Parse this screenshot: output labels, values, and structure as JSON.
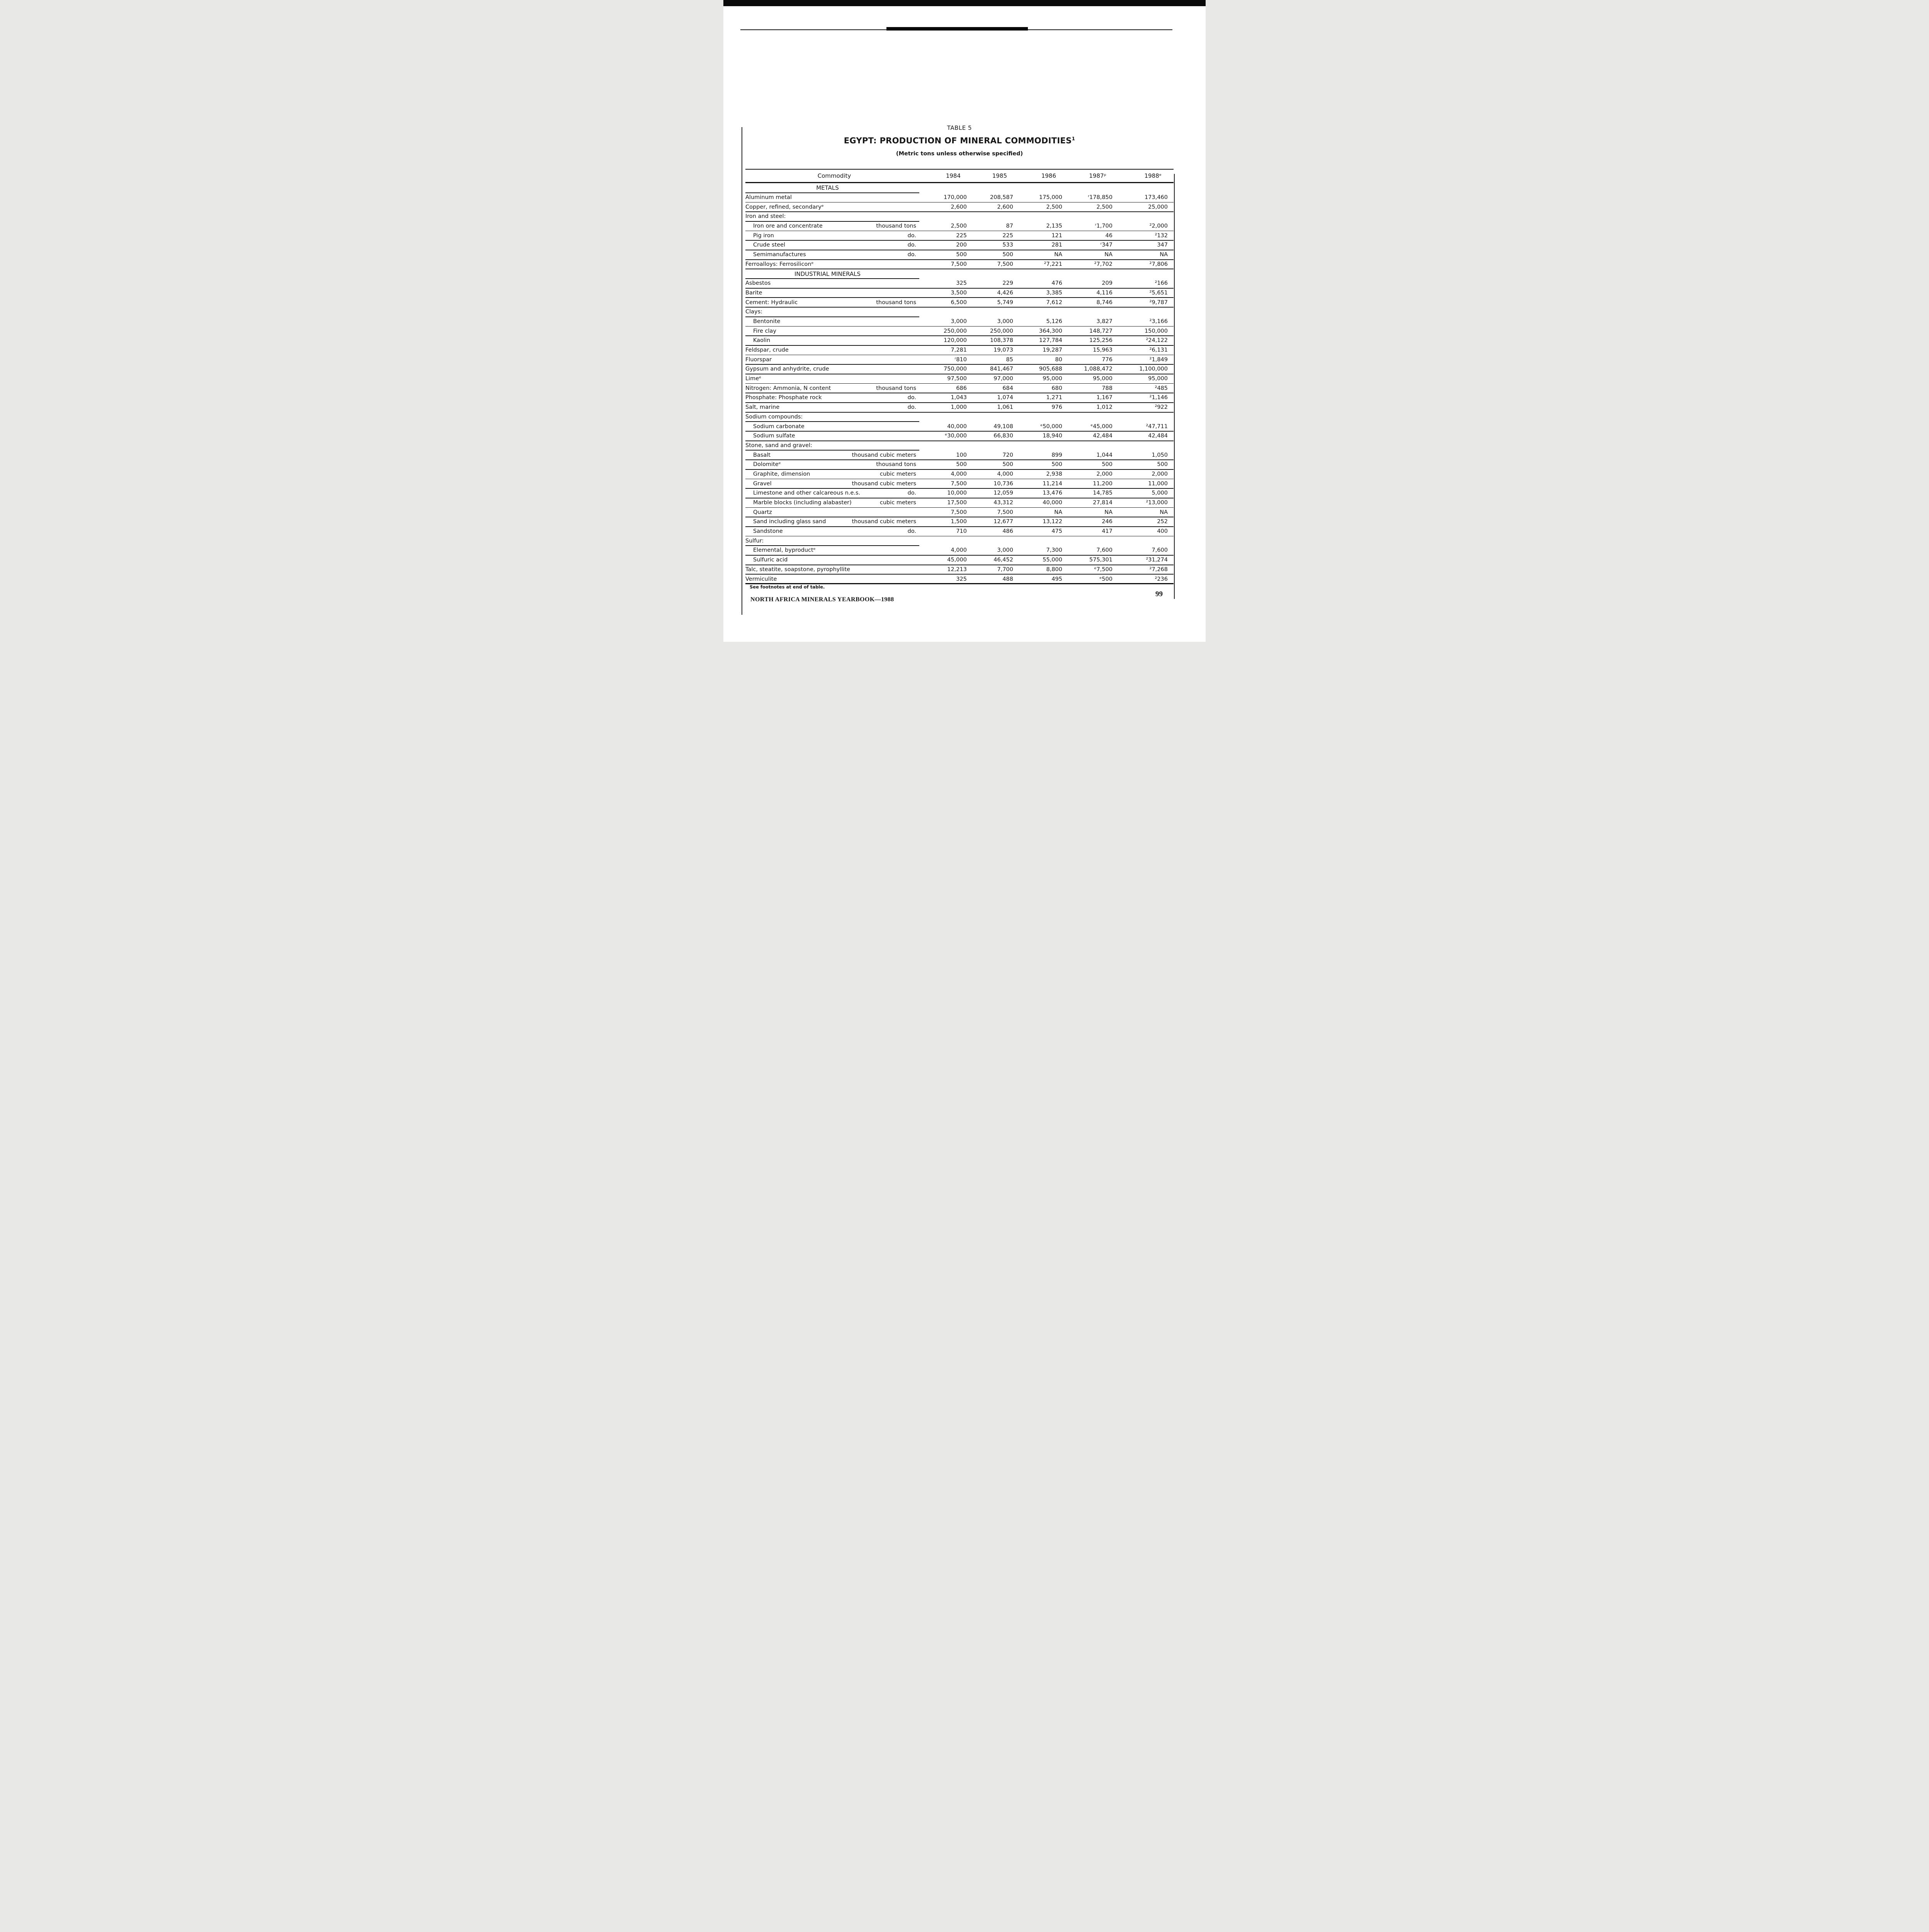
{
  "ink_color": "#161616",
  "page": {
    "table_label": "TABLE 5",
    "title": "EGYPT: PRODUCTION OF MINERAL COMMODITIES",
    "title_footnote_marker": "1",
    "subtitle": "(Metric tons unless otherwise specified)",
    "footnote": "See footnotes at end of table.",
    "footer": "NORTH AFRICA MINERALS YEARBOOK—1988",
    "page_number": "99"
  },
  "table": {
    "commodity_header": "Commodity",
    "columns": [
      "1984",
      "1985",
      "1986",
      "1987ᵖ",
      "1988ᵉ"
    ],
    "rows": [
      {
        "type": "section",
        "label": "METALS"
      },
      {
        "type": "data",
        "label": "Aluminum metal",
        "indent": 0,
        "unit": "",
        "values": [
          "170,000",
          "208,587",
          "175,000",
          "ʳ178,850",
          "173,460"
        ]
      },
      {
        "type": "data",
        "label": "Copper, refined, secondaryᵉ",
        "indent": 0,
        "unit": "",
        "values": [
          "2,600",
          "2,600",
          "2,500",
          "2,500",
          "25,000"
        ]
      },
      {
        "type": "group",
        "label": "Iron and steel:"
      },
      {
        "type": "data",
        "label": "Iron ore and concentrate",
        "indent": 1,
        "unit": "thousand tons",
        "values": [
          "2,500",
          "87",
          "2,135",
          "ʳ1,700",
          "²2,000"
        ]
      },
      {
        "type": "data",
        "label": "Pig iron",
        "indent": 1,
        "unit": "do.",
        "values": [
          "225",
          "225",
          "121",
          "46",
          "²132"
        ]
      },
      {
        "type": "data",
        "label": "Crude steel",
        "indent": 1,
        "unit": "do.",
        "values": [
          "200",
          "533",
          "281",
          "ʳ347",
          "347"
        ]
      },
      {
        "type": "data",
        "label": "Semimanufactures",
        "indent": 1,
        "unit": "do.",
        "values": [
          "500",
          "500",
          "NA",
          "NA",
          "NA"
        ]
      },
      {
        "type": "data",
        "label": "Ferroalloys: Ferrosiliconᵉ",
        "indent": 0,
        "unit": "",
        "values": [
          "7,500",
          "7,500",
          "²7,221",
          "²7,702",
          "²7,806"
        ]
      },
      {
        "type": "section",
        "label": "INDUSTRIAL MINERALS"
      },
      {
        "type": "data",
        "label": "Asbestos",
        "indent": 0,
        "unit": "",
        "values": [
          "325",
          "229",
          "476",
          "209",
          "²166"
        ]
      },
      {
        "type": "data",
        "label": "Barite",
        "indent": 0,
        "unit": "",
        "values": [
          "3,500",
          "4,426",
          "3,385",
          "4,116",
          "²5,651"
        ]
      },
      {
        "type": "data",
        "label": "Cement: Hydraulic",
        "indent": 0,
        "unit": "thousand tons",
        "values": [
          "6,500",
          "5,749",
          "7,612",
          "8,746",
          "²9,787"
        ]
      },
      {
        "type": "group",
        "label": "Clays:"
      },
      {
        "type": "data",
        "label": "Bentonite",
        "indent": 1,
        "unit": "",
        "values": [
          "3,000",
          "3,000",
          "5,126",
          "3,827",
          "²3,166"
        ]
      },
      {
        "type": "data",
        "label": "Fire clay",
        "indent": 1,
        "unit": "",
        "values": [
          "250,000",
          "250,000",
          "364,300",
          "148,727",
          "150,000"
        ]
      },
      {
        "type": "data",
        "label": "Kaolin",
        "indent": 1,
        "unit": "",
        "values": [
          "120,000",
          "108,378",
          "127,784",
          "125,256",
          "²24,122"
        ]
      },
      {
        "type": "data",
        "label": "Feldspar, crude",
        "indent": 0,
        "unit": "",
        "values": [
          "7,281",
          "19,073",
          "19,287",
          "15,963",
          "²6,131"
        ]
      },
      {
        "type": "data",
        "label": "Fluorspar",
        "indent": 0,
        "unit": "",
        "values": [
          "ʳ810",
          "85",
          "80",
          "776",
          "²1,849"
        ]
      },
      {
        "type": "data",
        "label": "Gypsum and anhydrite, crude",
        "indent": 0,
        "unit": "",
        "values": [
          "750,000",
          "841,467",
          "905,688",
          "1,088,472",
          "1,100,000"
        ]
      },
      {
        "type": "data",
        "label": "Limeᵉ",
        "indent": 0,
        "unit": "",
        "values": [
          "97,500",
          "97,000",
          "95,000",
          "95,000",
          "95,000"
        ]
      },
      {
        "type": "data",
        "label": "Nitrogen: Ammonia, N content",
        "indent": 0,
        "unit": "thousand tons",
        "values": [
          "686",
          "684",
          "680",
          "788",
          "²485"
        ]
      },
      {
        "type": "data",
        "label": "Phosphate: Phosphate rock",
        "indent": 0,
        "unit": "do.",
        "values": [
          "1,043",
          "1,074",
          "1,271",
          "1,167",
          "²1,146"
        ]
      },
      {
        "type": "data",
        "label": "Salt, marine",
        "indent": 0,
        "unit": "do.",
        "values": [
          "1,000",
          "1,061",
          "976",
          "1,012",
          "²922"
        ]
      },
      {
        "type": "group",
        "label": "Sodium compounds:"
      },
      {
        "type": "data",
        "label": "Sodium carbonate",
        "indent": 1,
        "unit": "",
        "values": [
          "40,000",
          "49,108",
          "ᵉ50,000",
          "ᵉ45,000",
          "²47,711"
        ]
      },
      {
        "type": "data",
        "label": "Sodium sulfate",
        "indent": 1,
        "unit": "",
        "values": [
          "ᵉ30,000",
          "66,830",
          "18,940",
          "42,484",
          "42,484"
        ]
      },
      {
        "type": "group",
        "label": "Stone, sand and gravel:"
      },
      {
        "type": "data",
        "label": "Basalt",
        "indent": 1,
        "unit": "thousand cubic meters",
        "values": [
          "100",
          "720",
          "899",
          "1,044",
          "1,050"
        ]
      },
      {
        "type": "data",
        "label": "Dolomiteᵉ",
        "indent": 1,
        "unit": "thousand tons",
        "values": [
          "500",
          "500",
          "500",
          "500",
          "500"
        ]
      },
      {
        "type": "data",
        "label": "Graphite, dimension",
        "indent": 1,
        "unit": "cubic meters",
        "values": [
          "4,000",
          "4,000",
          "2,938",
          "2,000",
          "2,000"
        ]
      },
      {
        "type": "data",
        "label": "Gravel",
        "indent": 1,
        "unit": "thousand cubic meters",
        "values": [
          "7,500",
          "10,736",
          "11,214",
          "11,200",
          "11,000"
        ]
      },
      {
        "type": "data",
        "label": "Limestone and other calcareous n.e.s.",
        "indent": 1,
        "unit": "do.",
        "values": [
          "10,000",
          "12,059",
          "13,476",
          "14,785",
          "5,000"
        ]
      },
      {
        "type": "data",
        "label": "Marble blocks (including alabaster)",
        "indent": 1,
        "unit": "cubic meters",
        "values": [
          "17,500",
          "43,312",
          "40,000",
          "27,814",
          "²13,000"
        ]
      },
      {
        "type": "data",
        "label": "Quartz",
        "indent": 1,
        "unit": "",
        "values": [
          "7,500",
          "7,500",
          "NA",
          "NA",
          "NA"
        ]
      },
      {
        "type": "data",
        "label": "Sand including glass sand",
        "indent": 1,
        "unit": "thousand cubic meters",
        "values": [
          "1,500",
          "12,677",
          "13,122",
          "246",
          "252"
        ]
      },
      {
        "type": "data",
        "label": "Sandstone",
        "indent": 1,
        "unit": "do.",
        "values": [
          "710",
          "486",
          "475",
          "417",
          "400"
        ]
      },
      {
        "type": "group",
        "label": "Sulfur:"
      },
      {
        "type": "data",
        "label": "Elemental, byproductᵉ",
        "indent": 1,
        "unit": "",
        "values": [
          "4,000",
          "3,000",
          "7,300",
          "7,600",
          "7,600"
        ]
      },
      {
        "type": "data",
        "label": "Sulfuric acid",
        "indent": 1,
        "unit": "",
        "values": [
          "45,000",
          "46,452",
          "55,000",
          "575,301",
          "²31,274"
        ]
      },
      {
        "type": "data",
        "label": "Talc, steatite, soapstone, pyrophyllite",
        "indent": 0,
        "unit": "",
        "values": [
          "12,213",
          "7,700",
          "8,800",
          "ᵉ7,500",
          "²7,268"
        ]
      },
      {
        "type": "data",
        "label": "Vermiculite",
        "indent": 0,
        "unit": "",
        "values": [
          "325",
          "488",
          "495",
          "ᵉ500",
          "²236"
        ]
      }
    ]
  }
}
